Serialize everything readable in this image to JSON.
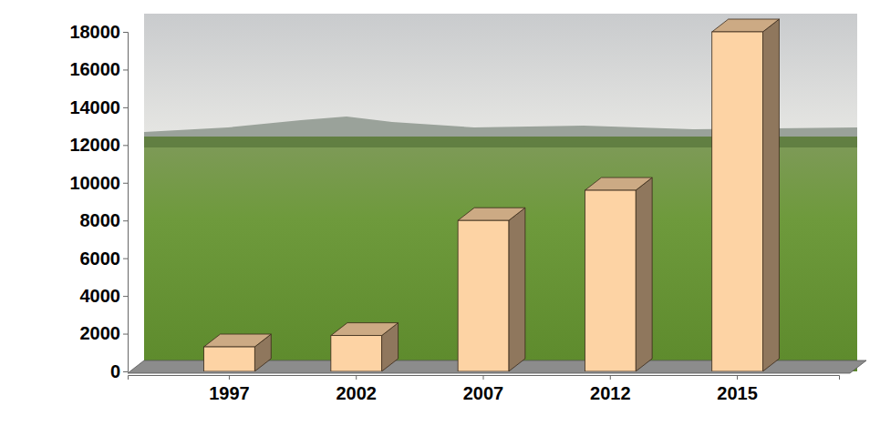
{
  "chart_data": {
    "type": "bar",
    "categories": [
      "1997",
      "2002",
      "2007",
      "2012",
      "2015"
    ],
    "values": [
      1300,
      1900,
      8000,
      9600,
      18000
    ],
    "color": "#fdd3a4",
    "ylim": [
      0,
      18000
    ],
    "yticks": [
      0,
      2000,
      4000,
      6000,
      8000,
      10000,
      12000,
      14000,
      16000,
      18000
    ],
    "grid": false
  }
}
